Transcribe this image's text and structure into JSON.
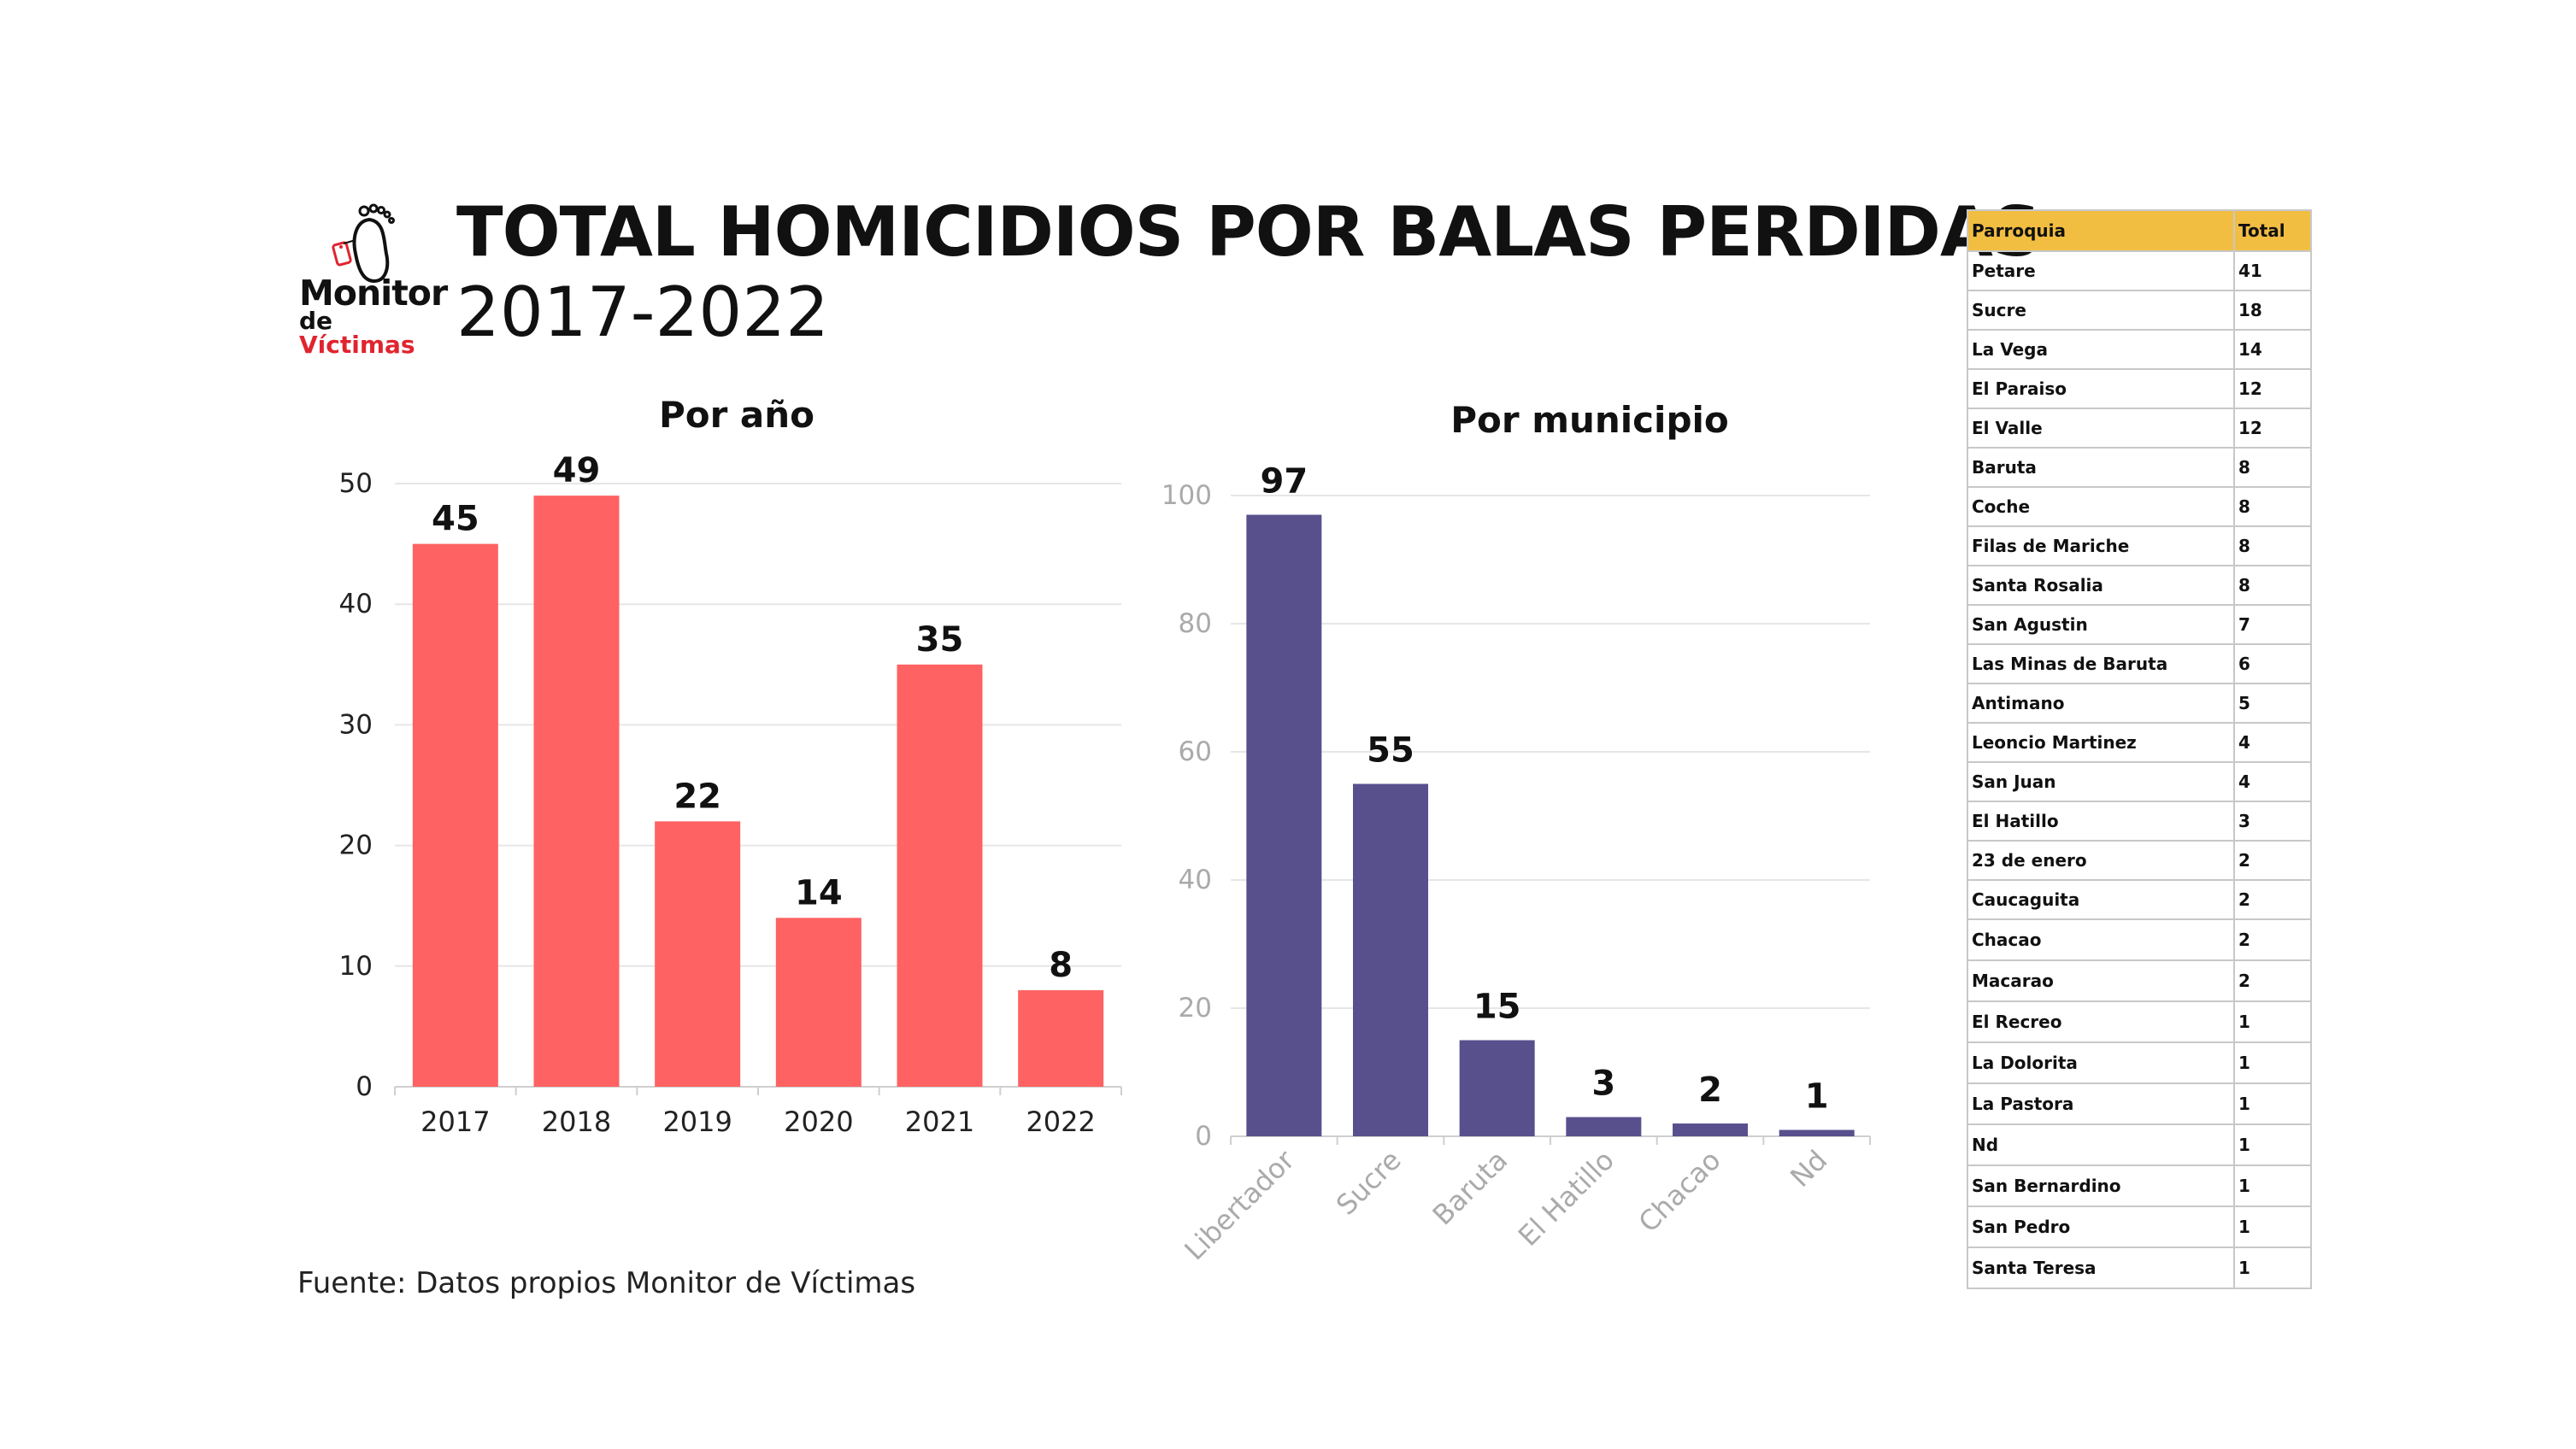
{
  "header": {
    "title": "TOTAL HOMICIDIOS POR BALAS PERDIDAS",
    "subtitle": "2017-2022",
    "logo_line1": "Monitor",
    "logo_line2_prefix": "de",
    "logo_line2_accent": "Víctimas"
  },
  "source": "Fuente: Datos propios Monitor de Víctimas",
  "colors": {
    "by_year_bar": "#ff6262",
    "by_municipality_bar": "#58508d",
    "table_header": "#f2be42",
    "logo_accent": "#e0242f"
  },
  "chart_data": [
    {
      "type": "bar",
      "title": "Por año",
      "categories": [
        "2017",
        "2018",
        "2019",
        "2020",
        "2021",
        "2022"
      ],
      "values": [
        45,
        49,
        22,
        14,
        35,
        8
      ],
      "yticks": [
        0,
        10,
        20,
        30,
        40,
        50
      ],
      "ylim": [
        0,
        50
      ],
      "xlabel": "",
      "ylabel": "",
      "grid": true,
      "data_labels": true
    },
    {
      "type": "bar",
      "title": "Por municipio",
      "categories": [
        "Libertador",
        "Sucre",
        "Baruta",
        "El Hatillo",
        "Chacao",
        "Nd"
      ],
      "values": [
        97,
        55,
        15,
        3,
        2,
        1
      ],
      "yticks": [
        0,
        20,
        40,
        60,
        80,
        100
      ],
      "ylim": [
        0,
        100
      ],
      "xlabel": "",
      "ylabel": "",
      "grid": true,
      "data_labels": true,
      "category_label_rotation": "diagonal"
    },
    {
      "type": "table",
      "columns": [
        "Parroquia",
        "Total"
      ],
      "rows": [
        [
          "Petare",
          "41"
        ],
        [
          "Sucre",
          "18"
        ],
        [
          "La Vega",
          "14"
        ],
        [
          "El Paraiso",
          "12"
        ],
        [
          "El Valle",
          "12"
        ],
        [
          "Baruta",
          "8"
        ],
        [
          "Coche",
          "8"
        ],
        [
          "Filas de Mariche",
          "8"
        ],
        [
          "Santa Rosalia",
          "8"
        ],
        [
          "San Agustin",
          "7"
        ],
        [
          "Las Minas de Baruta",
          "6"
        ],
        [
          "Antimano",
          "5"
        ],
        [
          "Leoncio Martinez",
          "4"
        ],
        [
          "San Juan",
          "4"
        ],
        [
          "El Hatillo",
          "3"
        ],
        [
          "23 de enero",
          "2"
        ],
        [
          "Caucaguita",
          "2"
        ],
        [
          "Chacao",
          "2"
        ],
        [
          "Macarao",
          "2"
        ],
        [
          "El Recreo",
          "1"
        ],
        [
          "La Dolorita",
          "1"
        ],
        [
          "La Pastora",
          "1"
        ],
        [
          "Nd",
          "1"
        ],
        [
          "San Bernardino",
          "1"
        ],
        [
          "San Pedro",
          "1"
        ],
        [
          "Santa Teresa",
          "1"
        ]
      ]
    }
  ]
}
